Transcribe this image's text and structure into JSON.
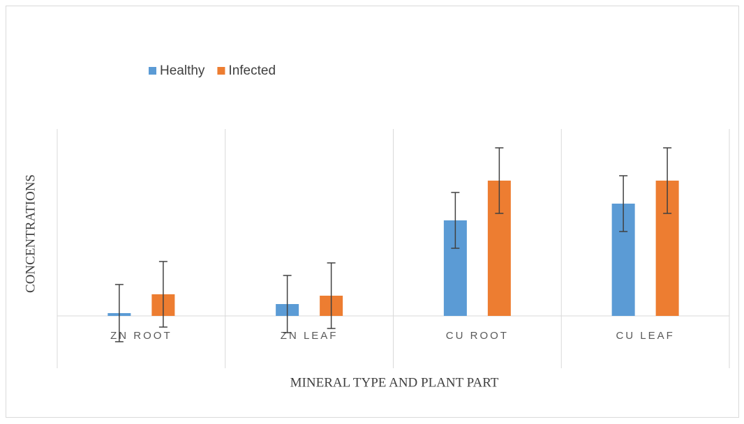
{
  "chart_data": {
    "type": "bar",
    "xlabel": "MINERAL TYPE AND PLANT PART",
    "ylabel": "CONCENTRATIONS",
    "categories": [
      "ZN ROOT",
      "ZN LEAF",
      "CU ROOT",
      "CU LEAF"
    ],
    "series": [
      {
        "name": "Healthy",
        "color": "#5b9bd5",
        "values": [
          4,
          17,
          137,
          161
        ],
        "errors": [
          41,
          41,
          40,
          40
        ]
      },
      {
        "name": "Infected",
        "color": "#ed7d31",
        "values": [
          31,
          29,
          194,
          194
        ],
        "errors": [
          47,
          47,
          47,
          47
        ]
      }
    ],
    "ylim": [
      -75,
      268
    ],
    "legend": "top-left",
    "grid": true
  }
}
